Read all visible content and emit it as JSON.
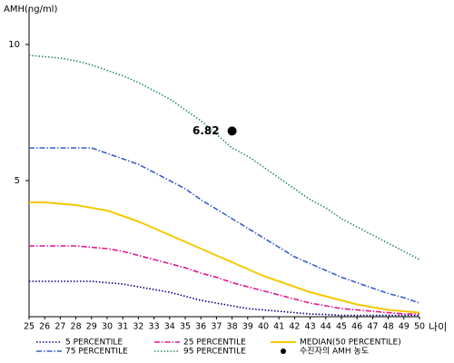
{
  "chart_data": {
    "type": "line",
    "title": "AMH(ng/ml)",
    "x_label": "나이",
    "x": [
      25,
      26,
      27,
      28,
      29,
      30,
      31,
      32,
      33,
      34,
      35,
      36,
      37,
      38,
      39,
      40,
      41,
      42,
      43,
      44,
      45,
      46,
      47,
      48,
      49,
      50
    ],
    "xlim": [
      25,
      50
    ],
    "xticks": [
      25,
      26,
      27,
      28,
      29,
      30,
      31,
      32,
      33,
      34,
      35,
      36,
      37,
      38,
      39,
      40,
      41,
      42,
      43,
      44,
      45,
      46,
      47,
      48,
      49,
      50
    ],
    "ylim": [
      0,
      11.3
    ],
    "yticks": [
      5,
      10
    ],
    "series": [
      {
        "name": "5 PERCENTILE",
        "color": "#000080",
        "dash": "dotted",
        "values": [
          1.3,
          1.3,
          1.3,
          1.3,
          1.3,
          1.25,
          1.2,
          1.1,
          1.0,
          0.9,
          0.75,
          0.6,
          0.5,
          0.4,
          0.3,
          0.25,
          0.2,
          0.15,
          0.1,
          0.08,
          0.05,
          0.05,
          0.05,
          0.05,
          0.05,
          0.05
        ]
      },
      {
        "name": "25 PERCENTILE",
        "color": "#e0178f",
        "dash": "dashdot",
        "values": [
          2.6,
          2.6,
          2.6,
          2.6,
          2.55,
          2.5,
          2.4,
          2.25,
          2.1,
          1.95,
          1.8,
          1.6,
          1.45,
          1.25,
          1.1,
          0.95,
          0.8,
          0.65,
          0.5,
          0.4,
          0.3,
          0.25,
          0.2,
          0.15,
          0.1,
          0.1
        ]
      },
      {
        "name": "MEDIAN(50 PERCENTILE)",
        "color": "#f5c800",
        "dash": "solid",
        "values": [
          4.2,
          4.2,
          4.15,
          4.1,
          4.0,
          3.9,
          3.7,
          3.5,
          3.25,
          3.0,
          2.75,
          2.5,
          2.25,
          2.0,
          1.75,
          1.5,
          1.3,
          1.1,
          0.9,
          0.75,
          0.6,
          0.45,
          0.35,
          0.25,
          0.2,
          0.15
        ]
      },
      {
        "name": "75 PERCENTILE",
        "color": "#3a5fcd",
        "dash": "dashdot",
        "values": [
          6.2,
          6.2,
          6.2,
          6.2,
          6.2,
          6.0,
          5.8,
          5.6,
          5.3,
          5.0,
          4.7,
          4.3,
          3.95,
          3.6,
          3.25,
          2.9,
          2.55,
          2.2,
          1.95,
          1.7,
          1.45,
          1.25,
          1.05,
          0.85,
          0.7,
          0.5
        ]
      },
      {
        "name": "95 PERCENTILE",
        "color": "#2e8b57",
        "dash": "dotted",
        "values": [
          9.6,
          9.55,
          9.5,
          9.4,
          9.25,
          9.05,
          8.85,
          8.6,
          8.3,
          8.0,
          7.6,
          7.2,
          6.7,
          6.2,
          5.9,
          5.5,
          5.1,
          4.7,
          4.3,
          4.0,
          3.6,
          3.3,
          3.0,
          2.7,
          2.4,
          2.1
        ]
      }
    ],
    "point": {
      "name": "수진자의 AMH 농도",
      "color": "#000000",
      "x": 38,
      "y": 6.82
    }
  }
}
